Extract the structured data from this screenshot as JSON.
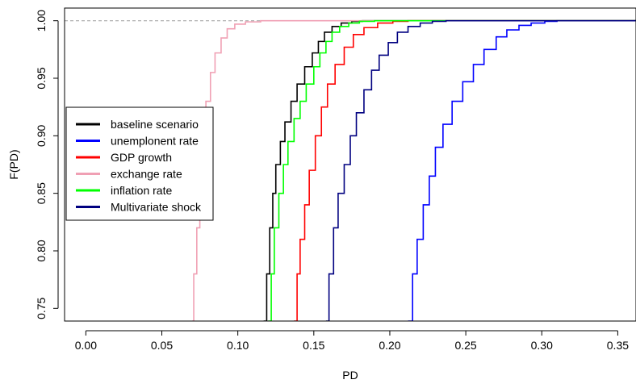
{
  "chart_data": {
    "type": "line",
    "title": "",
    "xlabel": "PD",
    "ylabel": "F(PD)",
    "xlim": [
      -0.014,
      0.362
    ],
    "ylim": [
      0.739,
      1.011
    ],
    "x_ticks": [
      "0.00",
      "0.05",
      "0.10",
      "0.15",
      "0.20",
      "0.25",
      "0.30",
      "0.35"
    ],
    "y_ticks": [
      "0.75",
      "0.80",
      "0.85",
      "0.90",
      "0.95",
      "1.00"
    ],
    "reference_line": {
      "y": 1.0,
      "style": "dashed",
      "color": "#9e9e9e"
    },
    "legend_position": "left",
    "series": [
      {
        "name": "baseline scenario",
        "color": "#000000",
        "points": [
          [
            0.117,
            0.739
          ],
          [
            0.119,
            0.78
          ],
          [
            0.121,
            0.82
          ],
          [
            0.123,
            0.85
          ],
          [
            0.125,
            0.875
          ],
          [
            0.128,
            0.895
          ],
          [
            0.131,
            0.912
          ],
          [
            0.135,
            0.93
          ],
          [
            0.139,
            0.945
          ],
          [
            0.144,
            0.96
          ],
          [
            0.149,
            0.972
          ],
          [
            0.153,
            0.982
          ],
          [
            0.157,
            0.99
          ],
          [
            0.162,
            0.995
          ],
          [
            0.168,
            0.998
          ],
          [
            0.175,
            0.9995
          ],
          [
            0.182,
            1.0
          ]
        ]
      },
      {
        "name": "unemplonent rate",
        "color": "#0000ff",
        "points": [
          [
            0.212,
            0.739
          ],
          [
            0.215,
            0.78
          ],
          [
            0.218,
            0.81
          ],
          [
            0.222,
            0.84
          ],
          [
            0.226,
            0.865
          ],
          [
            0.23,
            0.89
          ],
          [
            0.235,
            0.91
          ],
          [
            0.241,
            0.93
          ],
          [
            0.248,
            0.947
          ],
          [
            0.255,
            0.962
          ],
          [
            0.262,
            0.975
          ],
          [
            0.27,
            0.986
          ],
          [
            0.277,
            0.992
          ],
          [
            0.285,
            0.996
          ],
          [
            0.293,
            0.998
          ],
          [
            0.302,
            0.9995
          ],
          [
            0.31,
            1.0
          ]
        ]
      },
      {
        "name": "GDP growth",
        "color": "#ff0000",
        "points": [
          [
            0.137,
            0.739
          ],
          [
            0.139,
            0.78
          ],
          [
            0.141,
            0.81
          ],
          [
            0.144,
            0.84
          ],
          [
            0.147,
            0.87
          ],
          [
            0.151,
            0.9
          ],
          [
            0.155,
            0.925
          ],
          [
            0.159,
            0.945
          ],
          [
            0.164,
            0.962
          ],
          [
            0.17,
            0.977
          ],
          [
            0.176,
            0.988
          ],
          [
            0.183,
            0.994
          ],
          [
            0.192,
            0.998
          ],
          [
            0.202,
            0.9995
          ],
          [
            0.212,
            1.0
          ]
        ]
      },
      {
        "name": "exchange rate",
        "color": "#f0a0b4",
        "points": [
          [
            0.07,
            0.739
          ],
          [
            0.071,
            0.78
          ],
          [
            0.073,
            0.82
          ],
          [
            0.075,
            0.86
          ],
          [
            0.077,
            0.9
          ],
          [
            0.079,
            0.93
          ],
          [
            0.082,
            0.955
          ],
          [
            0.085,
            0.972
          ],
          [
            0.089,
            0.985
          ],
          [
            0.093,
            0.993
          ],
          [
            0.098,
            0.997
          ],
          [
            0.105,
            0.999
          ],
          [
            0.115,
            1.0
          ]
        ]
      },
      {
        "name": "inflation rate",
        "color": "#00ff00",
        "points": [
          [
            0.12,
            0.739
          ],
          [
            0.122,
            0.78
          ],
          [
            0.124,
            0.82
          ],
          [
            0.127,
            0.85
          ],
          [
            0.13,
            0.875
          ],
          [
            0.133,
            0.895
          ],
          [
            0.137,
            0.915
          ],
          [
            0.141,
            0.93
          ],
          [
            0.145,
            0.945
          ],
          [
            0.15,
            0.96
          ],
          [
            0.154,
            0.972
          ],
          [
            0.158,
            0.982
          ],
          [
            0.162,
            0.99
          ],
          [
            0.167,
            0.995
          ],
          [
            0.173,
            0.998
          ],
          [
            0.18,
            0.9995
          ],
          [
            0.19,
            1.0
          ]
        ]
      },
      {
        "name": "Multivariate shock",
        "color": "#000080",
        "points": [
          [
            0.158,
            0.739
          ],
          [
            0.16,
            0.78
          ],
          [
            0.163,
            0.82
          ],
          [
            0.166,
            0.85
          ],
          [
            0.17,
            0.875
          ],
          [
            0.174,
            0.9
          ],
          [
            0.178,
            0.92
          ],
          [
            0.183,
            0.94
          ],
          [
            0.188,
            0.957
          ],
          [
            0.193,
            0.97
          ],
          [
            0.199,
            0.981
          ],
          [
            0.205,
            0.99
          ],
          [
            0.212,
            0.995
          ],
          [
            0.22,
            0.998
          ],
          [
            0.228,
            0.9995
          ],
          [
            0.237,
            1.0
          ]
        ]
      }
    ]
  }
}
